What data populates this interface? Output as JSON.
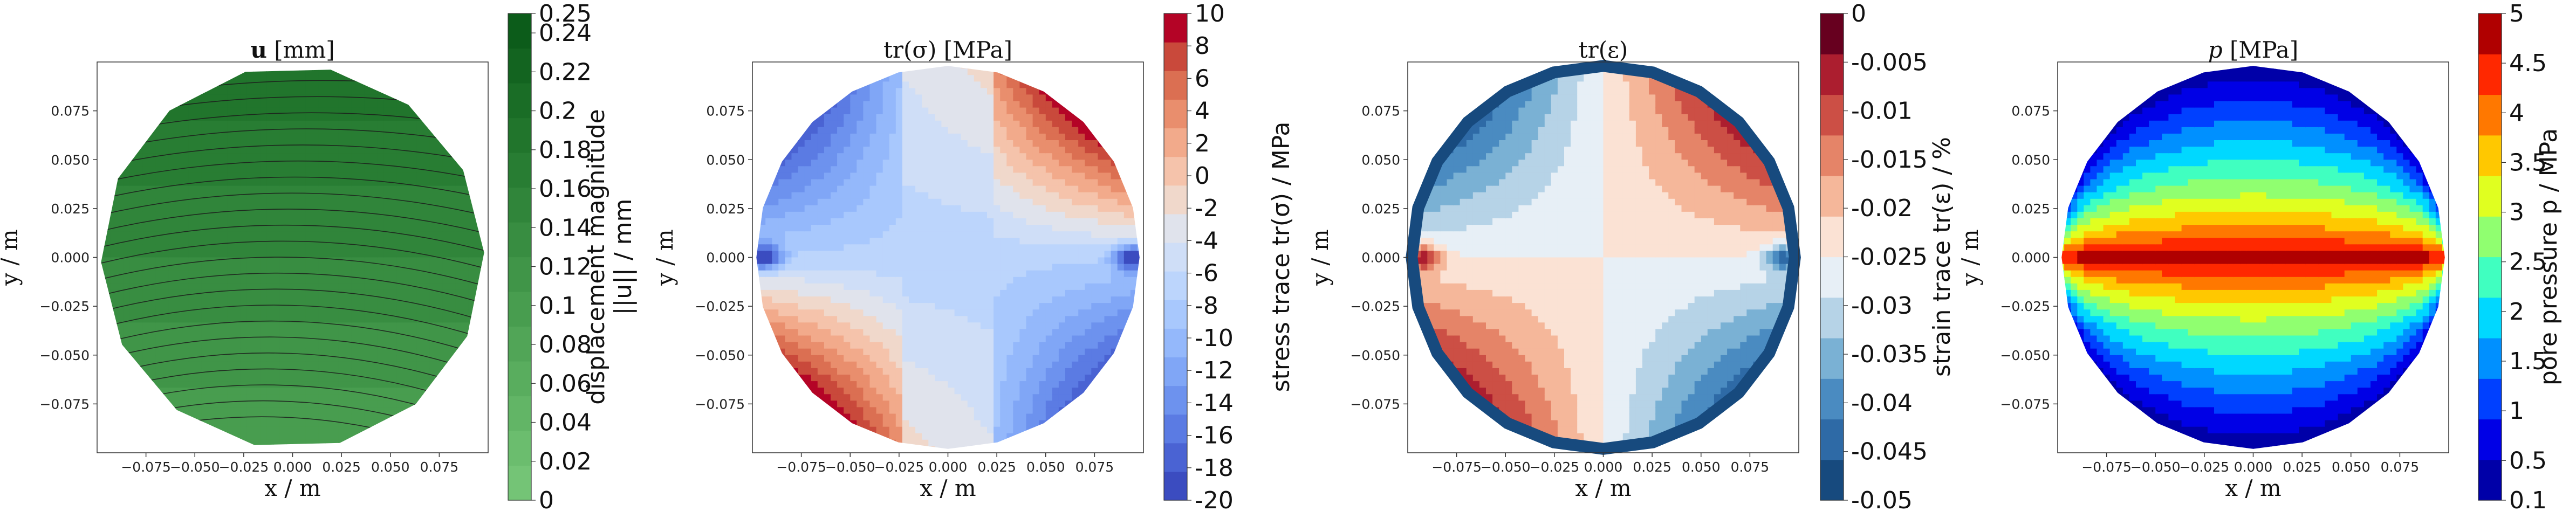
{
  "chart_data": [
    {
      "type": "contour",
      "title": "u [mm]",
      "title_parts": {
        "symbol": "u",
        "unit": "[mm]"
      },
      "xlabel": "x / m",
      "ylabel": "y / m",
      "xticks": [
        "−0.075",
        "−0.050",
        "−0.025",
        "0.000",
        "0.025",
        "0.050",
        "0.075"
      ],
      "yticks": [
        "0.075",
        "0.050",
        "0.025",
        "0.000",
        "−0.025",
        "−0.050",
        "−0.075"
      ],
      "xtick_values": [
        -0.075,
        -0.05,
        -0.025,
        0,
        0.025,
        0.05,
        0.075
      ],
      "ytick_values": [
        0.075,
        0.05,
        0.025,
        0,
        -0.025,
        -0.05,
        -0.075
      ],
      "xlim": [
        -0.1,
        0.1
      ],
      "ylim": [
        -0.1,
        0.1
      ],
      "colorbar_label": "displacement magnitude ||u|| / mm",
      "colorbar_label_parts": {
        "line1": "displacement magnitude",
        "line2": "||u|| / mm"
      },
      "colorbar_ticks": [
        "0.25",
        "0.24",
        "0.22",
        "0.2",
        "0.18",
        "0.16",
        "0.14",
        "0.12",
        "0.1",
        "0.08",
        "0.06",
        "0.04",
        "0.02",
        "0"
      ],
      "colorbar_values": [
        0.25,
        0.24,
        0.22,
        0.2,
        0.18,
        0.16,
        0.14,
        0.12,
        0.1,
        0.08,
        0.06,
        0.04,
        0.02,
        0
      ],
      "colors": [
        "#74c476",
        "#6bbd6e",
        "#62b566",
        "#59ad5e",
        "#51a557",
        "#489d4f",
        "#409548",
        "#388d41",
        "#30853a",
        "#287d33",
        "#21752c",
        "#1a6d26",
        "#136420",
        "#0c5c1a"
      ],
      "overlay": "streamlines"
    },
    {
      "type": "contour",
      "title": "tr(σ) [MPa]",
      "title_parts": {
        "symbol": "tr(σ)",
        "unit": "[MPa]"
      },
      "xlabel": "x / m",
      "ylabel": "y / m",
      "xticks": [
        "−0.075",
        "−0.050",
        "−0.025",
        "0.000",
        "0.025",
        "0.050",
        "0.075"
      ],
      "yticks": [
        "0.075",
        "0.050",
        "0.025",
        "0.000",
        "−0.025",
        "−0.050",
        "−0.075"
      ],
      "xtick_values": [
        -0.075,
        -0.05,
        -0.025,
        0,
        0.025,
        0.05,
        0.075
      ],
      "ytick_values": [
        0.075,
        0.05,
        0.025,
        0,
        -0.025,
        -0.05,
        -0.075
      ],
      "xlim": [
        -0.1,
        0.1
      ],
      "ylim": [
        -0.1,
        0.1
      ],
      "colorbar_label": "stress trace tr(σ) / MPa",
      "colorbar_ticks": [
        "10",
        "8",
        "6",
        "4",
        "2",
        "0",
        "-2",
        "-4",
        "-6",
        "-8",
        "-10",
        "-12",
        "-14",
        "-16",
        "-18",
        "-20"
      ],
      "colorbar_values": [
        10,
        8,
        6,
        4,
        2,
        0,
        -2,
        -4,
        -6,
        -8,
        -10,
        -12,
        -14,
        -16,
        -18,
        -20
      ],
      "colors": [
        "#3b4cc0",
        "#4a63d3",
        "#5b7be3",
        "#6d92ee",
        "#80a6f6",
        "#94b8fb",
        "#a8c8fd",
        "#bcd5fc",
        "#cfdef7",
        "#e0e3ec",
        "#f0d8cb",
        "#f5c3ab",
        "#f2aa8b",
        "#e98e6d",
        "#db6f52",
        "#c9493b",
        "#b40426"
      ]
    },
    {
      "type": "contour",
      "title": "tr(ε)",
      "xlabel": "x / m",
      "ylabel": "y / m",
      "xticks": [
        "−0.075",
        "−0.050",
        "−0.025",
        "0.000",
        "0.025",
        "0.050",
        "0.075"
      ],
      "yticks": [
        "0.075",
        "0.050",
        "0.025",
        "0.000",
        "−0.025",
        "−0.050",
        "−0.075"
      ],
      "xtick_values": [
        -0.075,
        -0.05,
        -0.025,
        0,
        0.025,
        0.05,
        0.075
      ],
      "ytick_values": [
        0.075,
        0.05,
        0.025,
        0,
        -0.025,
        -0.05,
        -0.075
      ],
      "xlim": [
        -0.1,
        0.1
      ],
      "ylim": [
        -0.1,
        0.1
      ],
      "colorbar_label": "strain trace tr(ε) / %",
      "colorbar_ticks": [
        "0",
        "-0.005",
        "-0.01",
        "-0.015",
        "-0.02",
        "-0.025",
        "-0.03",
        "-0.035",
        "-0.04",
        "-0.045",
        "-0.05"
      ],
      "colorbar_values": [
        0,
        -0.005,
        -0.01,
        -0.015,
        -0.02,
        -0.025,
        -0.03,
        -0.035,
        -0.04,
        -0.045,
        -0.05
      ],
      "colors": [
        "#174a7e",
        "#2e6aa6",
        "#4a8bc1",
        "#7ab1d4",
        "#b6d3e7",
        "#e7eff6",
        "#fbe2d4",
        "#f5b79a",
        "#e58468",
        "#cc4f45",
        "#ac1e2f",
        "#67001f"
      ]
    },
    {
      "type": "contour",
      "title": "p [MPa]",
      "title_parts": {
        "symbol": "p",
        "unit": "[MPa]"
      },
      "xlabel": "x / m",
      "ylabel": "y / m",
      "xticks": [
        "−0.075",
        "−0.050",
        "−0.025",
        "0.000",
        "0.025",
        "0.050",
        "0.075"
      ],
      "yticks": [
        "0.075",
        "0.050",
        "0.025",
        "0.000",
        "−0.025",
        "−0.050",
        "−0.075"
      ],
      "xtick_values": [
        -0.075,
        -0.05,
        -0.025,
        0,
        0.025,
        0.05,
        0.075
      ],
      "ytick_values": [
        0.075,
        0.05,
        0.025,
        0,
        -0.025,
        -0.05,
        -0.075
      ],
      "xlim": [
        -0.1,
        0.1
      ],
      "ylim": [
        -0.1,
        0.1
      ],
      "colorbar_label": "pore pressure p / MPa",
      "colorbar_ticks": [
        "5",
        "4.5",
        "4",
        "3.5",
        "3",
        "2.5",
        "2",
        "1.5",
        "1",
        "0.5",
        "0.1"
      ],
      "colorbar_values": [
        5,
        4.5,
        4,
        3.5,
        3,
        2.5,
        2,
        1.5,
        1,
        0.5,
        0.1
      ],
      "colors": [
        "#0000a8",
        "#0000e6",
        "#0040ff",
        "#0090ff",
        "#00d8ff",
        "#40ffc0",
        "#90ff70",
        "#e0ff20",
        "#ffc800",
        "#ff7800",
        "#ff2800",
        "#b00000"
      ]
    }
  ]
}
